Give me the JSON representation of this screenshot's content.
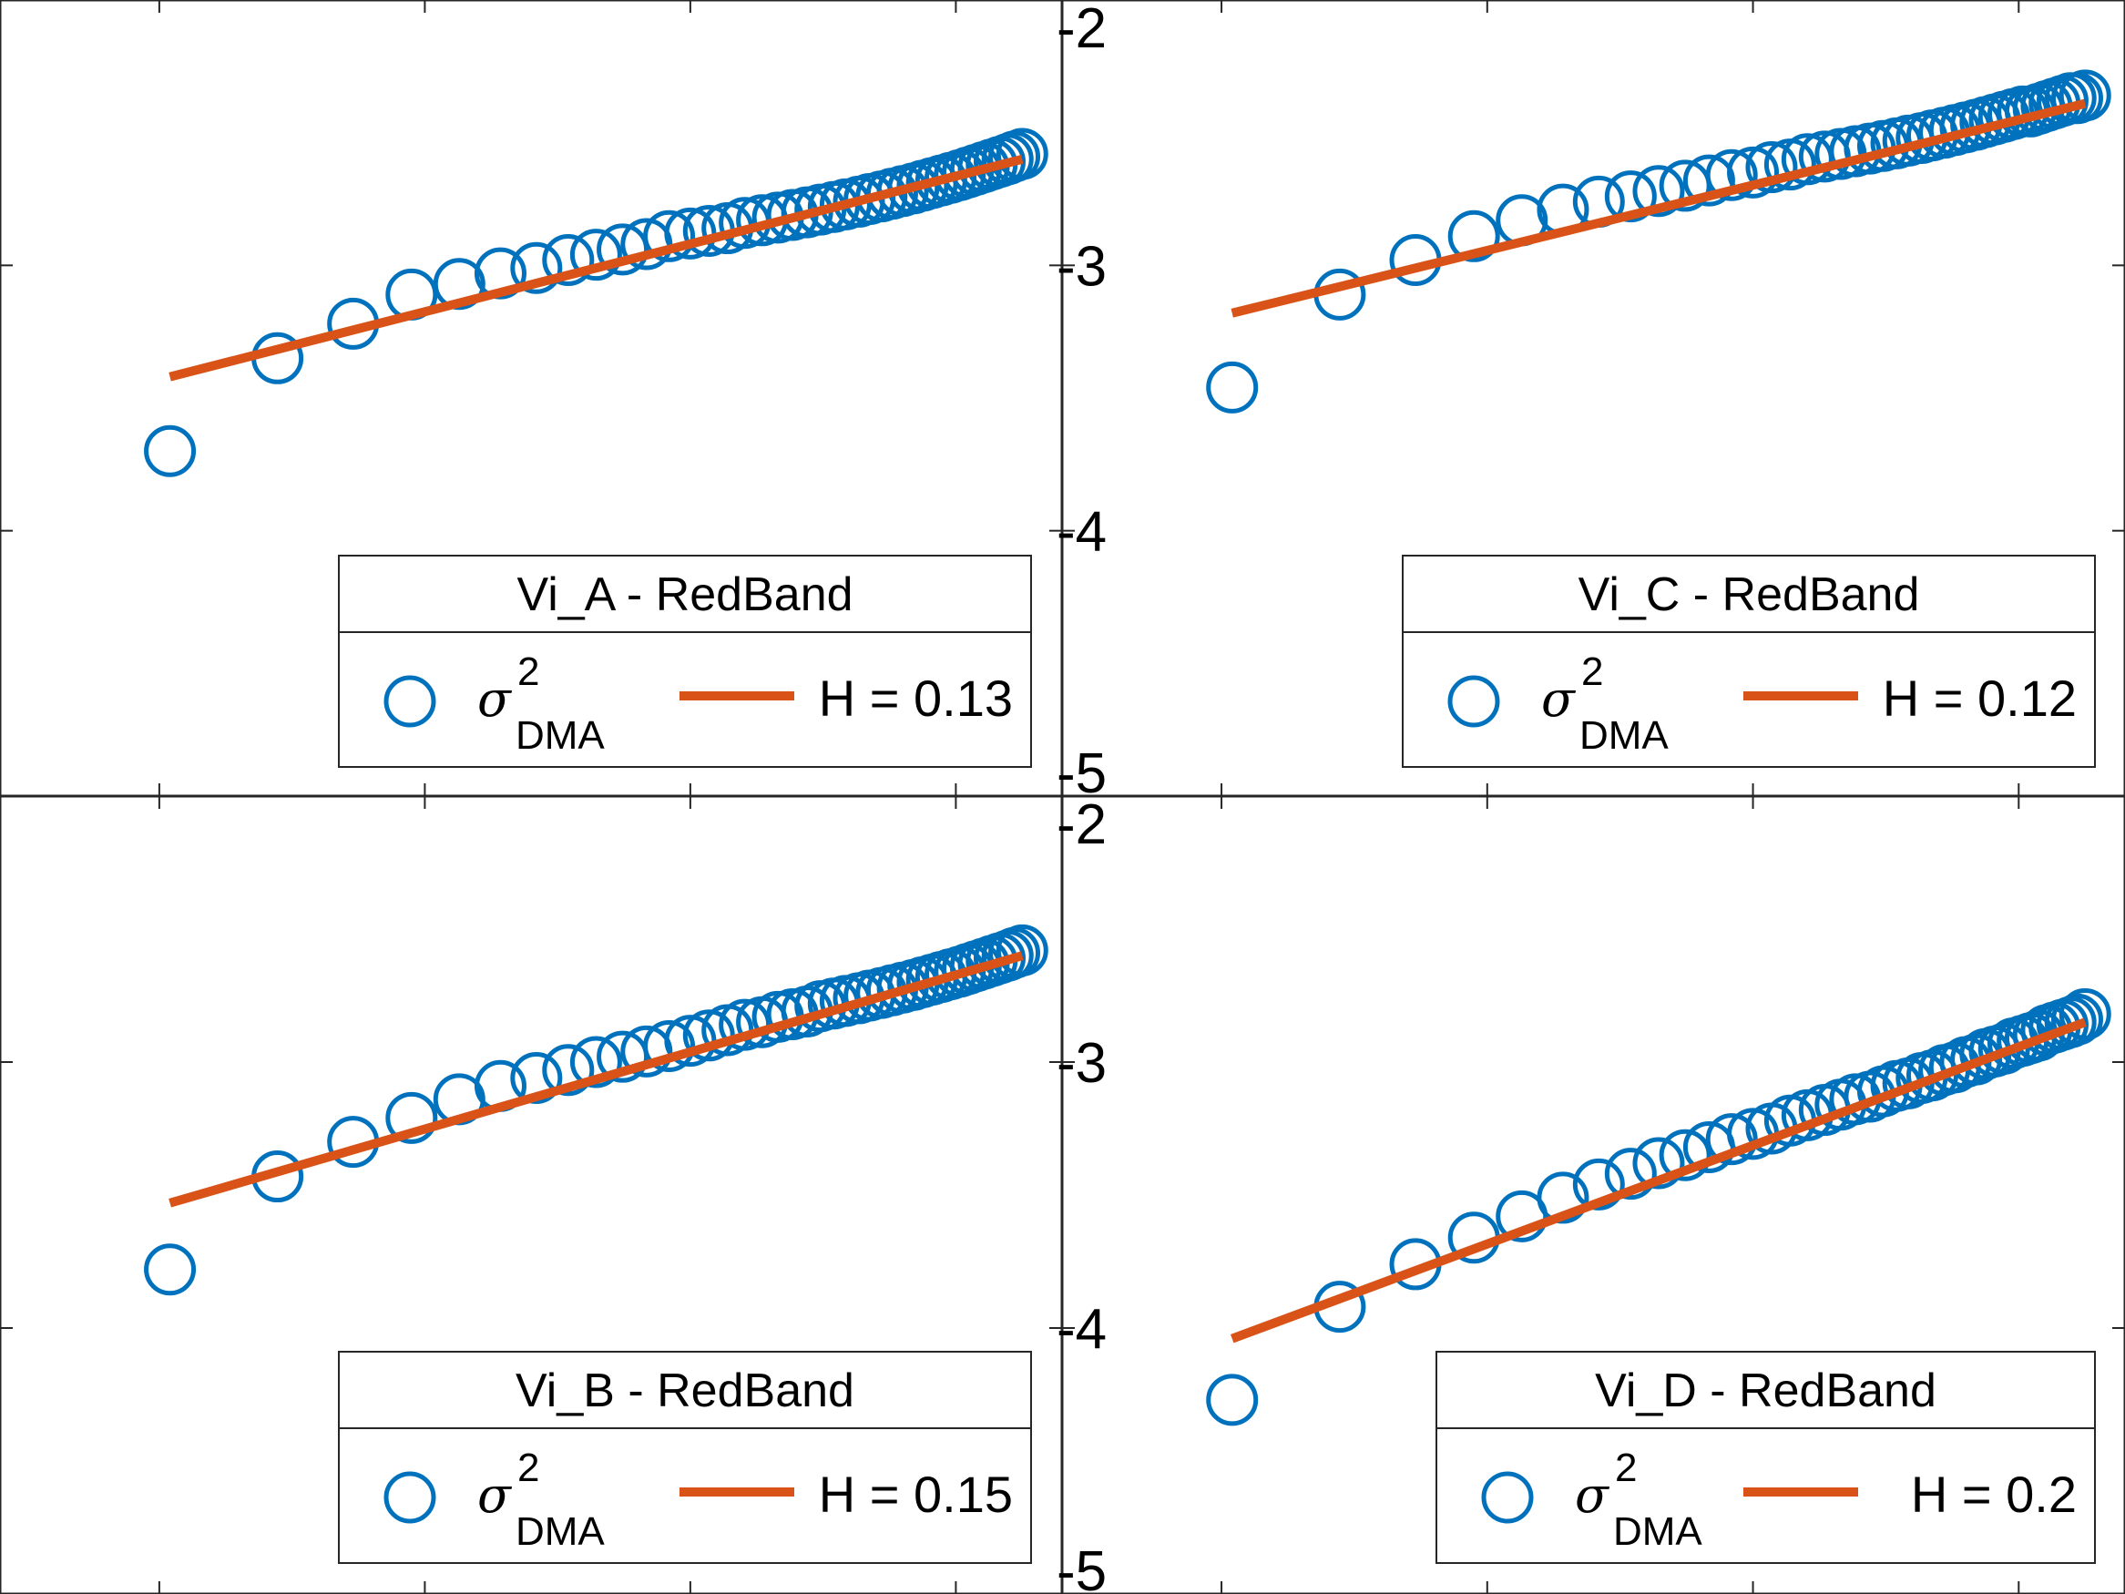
{
  "colors": {
    "marker": "#0072BD",
    "fit": "#D95319",
    "axis": "#262626",
    "legend_border": "#262626"
  },
  "chart_data": [
    {
      "type": "scatter",
      "panel": "top-left",
      "xlim": [
        0.8,
        8.8
      ],
      "ylim": [
        -5,
        -2
      ],
      "xticks": [
        2,
        4,
        6,
        8
      ],
      "yticks": [
        -5,
        -4,
        -3,
        -2
      ],
      "show_xtick_labels": false,
      "show_ytick_labels": false,
      "grid": false,
      "legend_position": "bottom-right",
      "legend": {
        "title": "Vi_A - RedBand",
        "marker_symbol": "σ",
        "marker_sup": "2",
        "marker_sub": "DMA",
        "line_label": "H = 0.13"
      },
      "series": [
        {
          "kind": "markers",
          "x": [
            2.08,
            2.89,
            3.46,
            3.9,
            4.26,
            4.57,
            4.84,
            5.08,
            5.29,
            5.49,
            5.67,
            5.84,
            6.0,
            6.14,
            6.28,
            6.41,
            6.54,
            6.66,
            6.77,
            6.88,
            6.98,
            7.08,
            7.17,
            7.27,
            7.35,
            7.44,
            7.52,
            7.6,
            7.68,
            7.75,
            7.82,
            7.89,
            7.96,
            8.03,
            8.09,
            8.15,
            8.21,
            8.27,
            8.33,
            8.39,
            8.44,
            8.5
          ],
          "y": [
            -3.7,
            -3.35,
            -3.22,
            -3.11,
            -3.07,
            -3.03,
            -3.01,
            -2.98,
            -2.96,
            -2.94,
            -2.92,
            -2.89,
            -2.88,
            -2.87,
            -2.86,
            -2.84,
            -2.83,
            -2.82,
            -2.81,
            -2.8,
            -2.79,
            -2.78,
            -2.77,
            -2.76,
            -2.75,
            -2.74,
            -2.73,
            -2.72,
            -2.71,
            -2.7,
            -2.69,
            -2.68,
            -2.67,
            -2.66,
            -2.65,
            -2.64,
            -2.63,
            -2.62,
            -2.61,
            -2.6,
            -2.59,
            -2.58
          ]
        },
        {
          "kind": "line",
          "x": [
            2.08,
            8.5
          ],
          "y": [
            -3.42,
            -2.6
          ]
        }
      ]
    },
    {
      "type": "scatter",
      "panel": "top-right",
      "xlim": [
        0.8,
        8.8
      ],
      "ylim": [
        -5,
        -2
      ],
      "xticks": [
        2,
        4,
        6,
        8
      ],
      "yticks": [
        -5,
        -4,
        -3,
        -2
      ],
      "show_xtick_labels": false,
      "show_ytick_labels": true,
      "grid": false,
      "legend_position": "bottom-right",
      "legend": {
        "title": "Vi_C - RedBand",
        "marker_symbol": "σ",
        "marker_sup": "2",
        "marker_sub": "DMA",
        "line_label": "H = 0.12"
      },
      "series": [
        {
          "kind": "markers",
          "x": [
            2.08,
            2.89,
            3.46,
            3.9,
            4.26,
            4.57,
            4.84,
            5.08,
            5.29,
            5.49,
            5.67,
            5.84,
            6.0,
            6.14,
            6.28,
            6.41,
            6.54,
            6.66,
            6.77,
            6.88,
            6.98,
            7.08,
            7.17,
            7.27,
            7.35,
            7.44,
            7.52,
            7.6,
            7.68,
            7.75,
            7.82,
            7.89,
            7.96,
            8.03,
            8.09,
            8.15,
            8.21,
            8.27,
            8.33,
            8.39,
            8.44,
            8.5
          ],
          "y": [
            -3.46,
            -3.11,
            -2.98,
            -2.89,
            -2.83,
            -2.79,
            -2.76,
            -2.74,
            -2.72,
            -2.7,
            -2.68,
            -2.66,
            -2.65,
            -2.63,
            -2.62,
            -2.6,
            -2.59,
            -2.58,
            -2.57,
            -2.56,
            -2.55,
            -2.54,
            -2.53,
            -2.52,
            -2.51,
            -2.5,
            -2.49,
            -2.48,
            -2.47,
            -2.46,
            -2.45,
            -2.44,
            -2.43,
            -2.42,
            -2.42,
            -2.41,
            -2.4,
            -2.39,
            -2.38,
            -2.37,
            -2.37,
            -2.36
          ]
        },
        {
          "kind": "line",
          "x": [
            2.08,
            8.5
          ],
          "y": [
            -3.18,
            -2.39
          ]
        }
      ]
    },
    {
      "type": "scatter",
      "panel": "bottom-left",
      "xlim": [
        0.8,
        8.8
      ],
      "ylim": [
        -5,
        -2
      ],
      "xticks": [
        2,
        4,
        6,
        8
      ],
      "yticks": [
        -5,
        -4,
        -3,
        -2
      ],
      "show_xtick_labels": true,
      "show_ytick_labels": false,
      "grid": false,
      "legend_position": "bottom-right",
      "legend": {
        "title": "Vi_B - RedBand",
        "marker_symbol": "σ",
        "marker_sup": "2",
        "marker_sub": "DMA",
        "line_label": "H = 0.15"
      },
      "series": [
        {
          "kind": "markers",
          "x": [
            2.08,
            2.89,
            3.46,
            3.9,
            4.26,
            4.57,
            4.84,
            5.08,
            5.29,
            5.49,
            5.67,
            5.84,
            6.0,
            6.14,
            6.28,
            6.41,
            6.54,
            6.66,
            6.77,
            6.88,
            6.98,
            7.08,
            7.17,
            7.27,
            7.35,
            7.44,
            7.52,
            7.6,
            7.68,
            7.75,
            7.82,
            7.89,
            7.96,
            8.03,
            8.09,
            8.15,
            8.21,
            8.27,
            8.33,
            8.39,
            8.44,
            8.5
          ],
          "y": [
            -3.78,
            -3.43,
            -3.3,
            -3.21,
            -3.14,
            -3.09,
            -3.06,
            -3.03,
            -3.0,
            -2.98,
            -2.96,
            -2.94,
            -2.92,
            -2.9,
            -2.88,
            -2.86,
            -2.85,
            -2.83,
            -2.82,
            -2.81,
            -2.79,
            -2.78,
            -2.77,
            -2.76,
            -2.75,
            -2.74,
            -2.73,
            -2.72,
            -2.71,
            -2.7,
            -2.69,
            -2.68,
            -2.67,
            -2.66,
            -2.65,
            -2.64,
            -2.63,
            -2.62,
            -2.61,
            -2.6,
            -2.59,
            -2.58
          ]
        },
        {
          "kind": "line",
          "x": [
            2.08,
            8.5
          ],
          "y": [
            -3.53,
            -2.6
          ]
        }
      ]
    },
    {
      "type": "scatter",
      "panel": "bottom-right",
      "xlim": [
        0.8,
        8.8
      ],
      "ylim": [
        -5,
        -2
      ],
      "xticks": [
        2,
        4,
        6,
        8
      ],
      "yticks": [
        -5,
        -4,
        -3,
        -2
      ],
      "show_xtick_labels": false,
      "show_ytick_labels": true,
      "grid": false,
      "legend_position": "bottom-right",
      "legend": {
        "title": "Vi_D - RedBand",
        "marker_symbol": "σ",
        "marker_sup": "2",
        "marker_sub": "DMA",
        "line_label": "H = 0.2"
      },
      "series": [
        {
          "kind": "markers",
          "x": [
            2.08,
            2.89,
            3.46,
            3.9,
            4.26,
            4.57,
            4.84,
            5.08,
            5.29,
            5.49,
            5.67,
            5.84,
            6.0,
            6.14,
            6.28,
            6.41,
            6.54,
            6.66,
            6.77,
            6.88,
            6.98,
            7.08,
            7.17,
            7.27,
            7.35,
            7.44,
            7.52,
            7.6,
            7.68,
            7.75,
            7.82,
            7.89,
            7.96,
            8.03,
            8.09,
            8.15,
            8.21,
            8.27,
            8.33,
            8.39,
            8.44,
            8.5
          ],
          "y": [
            -4.27,
            -3.92,
            -3.76,
            -3.66,
            -3.58,
            -3.51,
            -3.46,
            -3.42,
            -3.38,
            -3.35,
            -3.32,
            -3.29,
            -3.27,
            -3.25,
            -3.22,
            -3.2,
            -3.18,
            -3.16,
            -3.14,
            -3.13,
            -3.11,
            -3.09,
            -3.08,
            -3.06,
            -3.05,
            -3.03,
            -3.02,
            -3.0,
            -2.99,
            -2.97,
            -2.96,
            -2.95,
            -2.93,
            -2.92,
            -2.91,
            -2.9,
            -2.88,
            -2.87,
            -2.86,
            -2.85,
            -2.84,
            -2.82
          ]
        },
        {
          "kind": "line",
          "x": [
            2.08,
            8.5
          ],
          "y": [
            -4.04,
            -2.85
          ]
        }
      ]
    }
  ]
}
